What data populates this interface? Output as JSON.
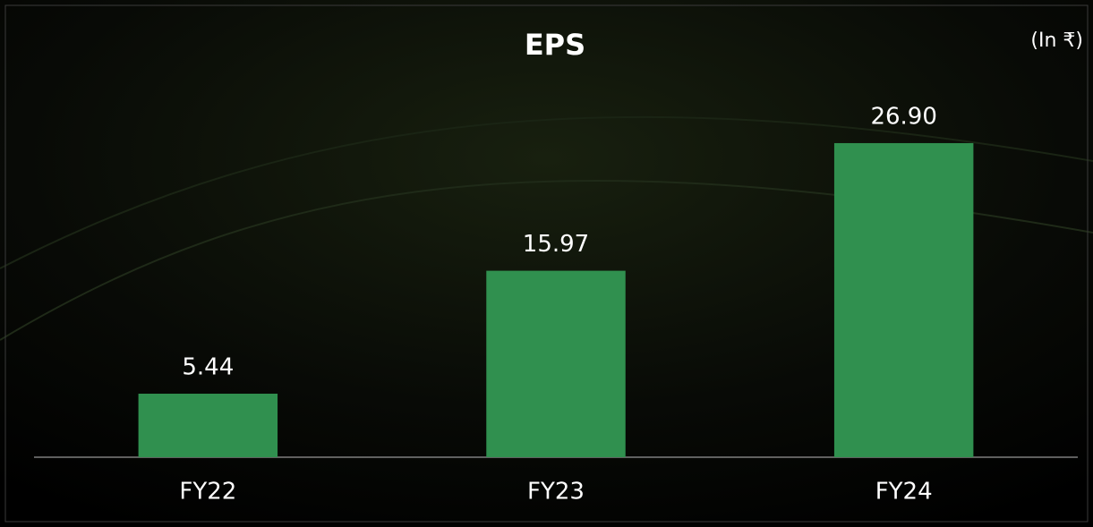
{
  "chart_data": {
    "type": "bar",
    "title": "EPS",
    "subtitle": "(In ₹)",
    "categories": [
      "FY22",
      "FY23",
      "FY24"
    ],
    "values": [
      5.44,
      15.97,
      26.9
    ],
    "value_labels": [
      "5.44",
      "15.97",
      "26.90"
    ],
    "color": "#30904f",
    "ylim": [
      0,
      30
    ]
  }
}
